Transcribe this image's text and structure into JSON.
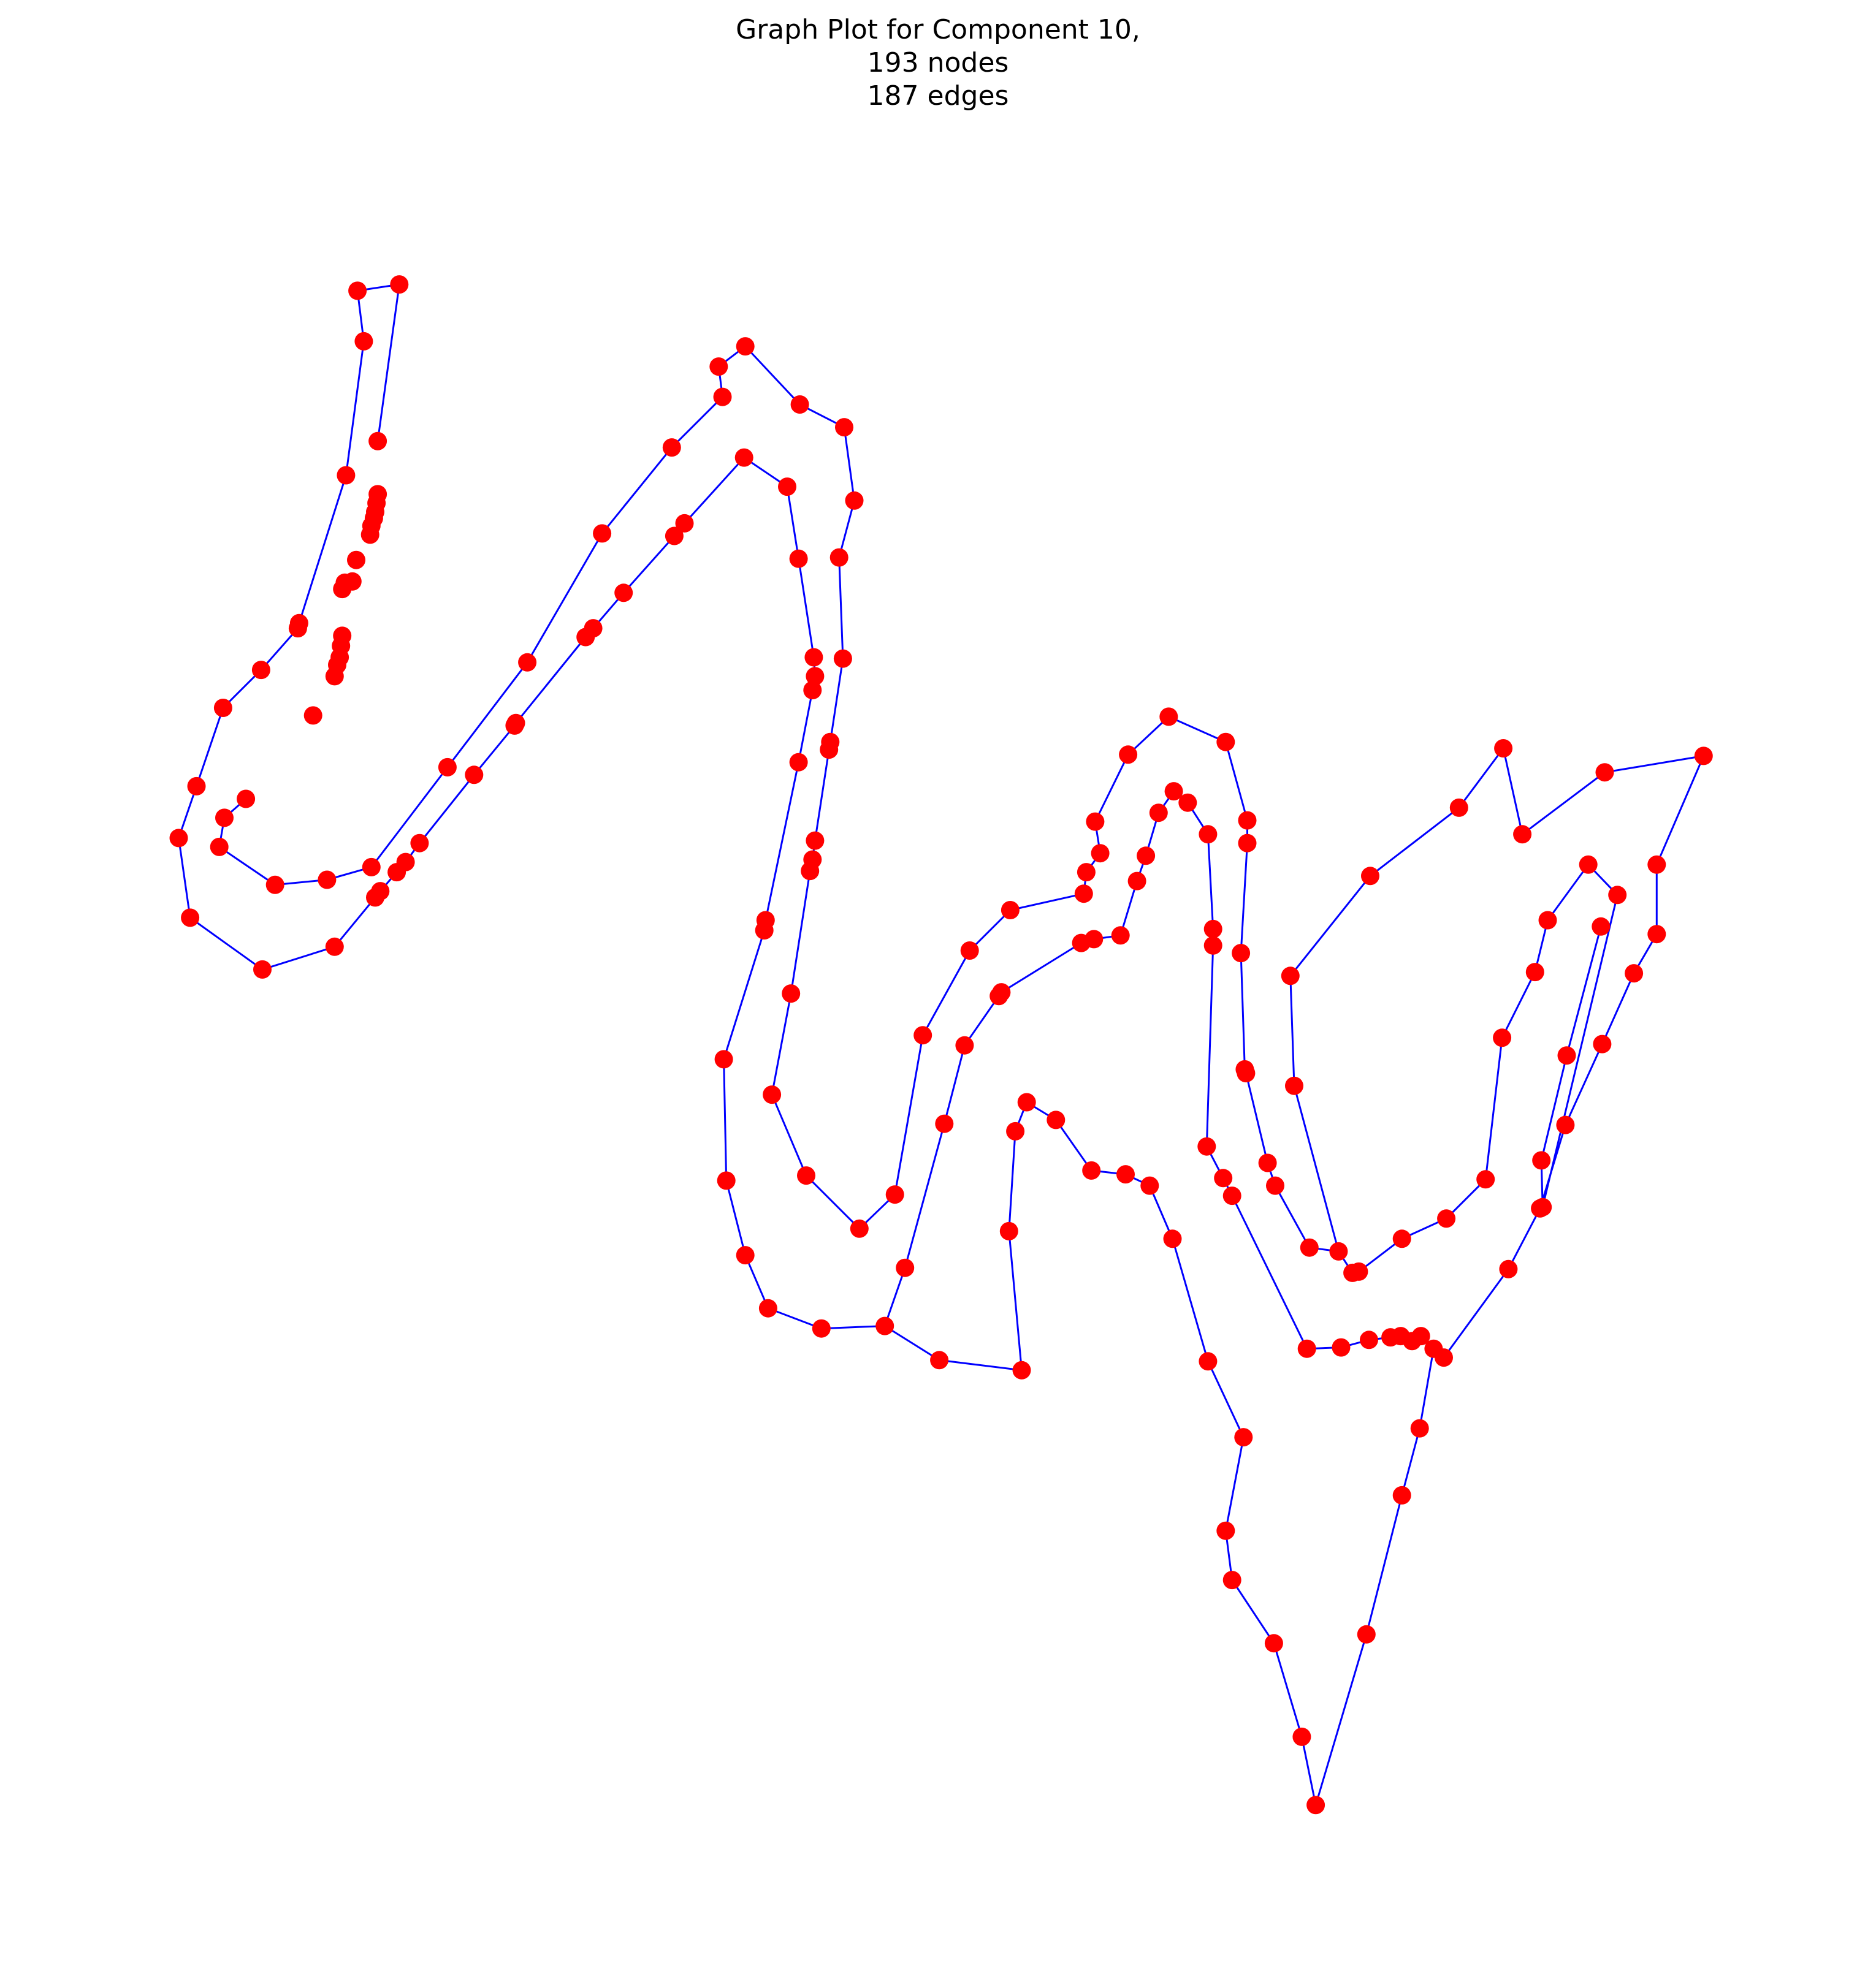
{
  "title": {
    "line1": "Graph Plot for Component 10,",
    "line2": "193 nodes",
    "line3": "187 edges"
  },
  "colors": {
    "node": "#ff0000",
    "edge": "#0000ff",
    "background": "#ffffff"
  },
  "chart_data": {
    "type": "network-graph",
    "node_count": 193,
    "edge_count": 187,
    "axes": "off"
  }
}
